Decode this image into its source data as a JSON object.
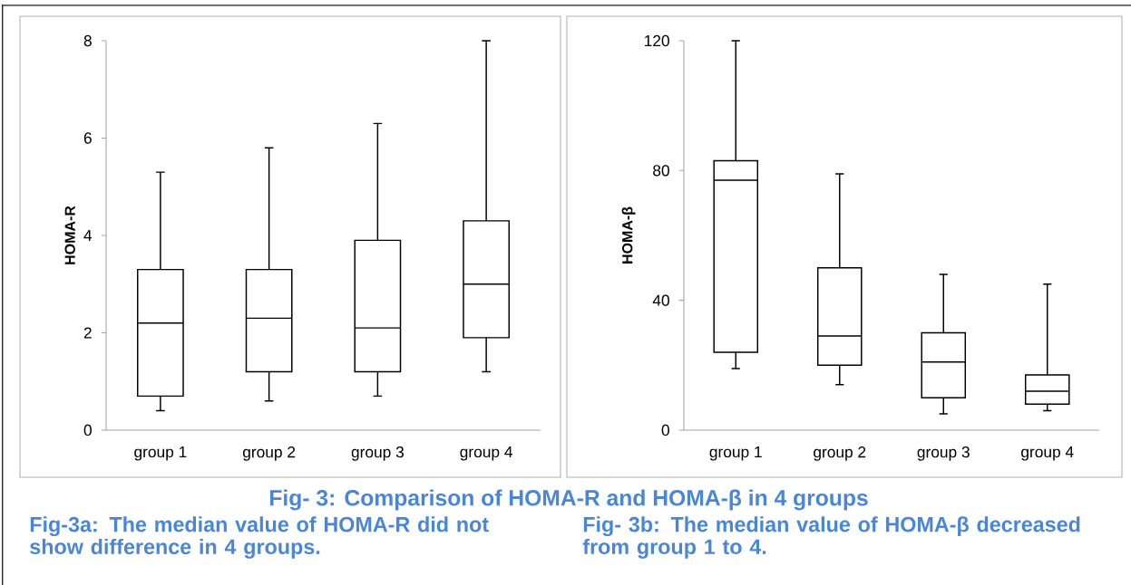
{
  "chart_data": [
    {
      "type": "box",
      "categories": [
        "group 1",
        "group 2",
        "group 3",
        "group 4"
      ],
      "ylabel": "HOMA-R",
      "ylim": [
        0,
        8
      ],
      "yticks": [
        0,
        2,
        4,
        6,
        8
      ],
      "boxes": [
        {
          "low": 0.4,
          "q1": 0.7,
          "median": 2.2,
          "q3": 3.3,
          "high": 5.3
        },
        {
          "low": 0.6,
          "q1": 1.2,
          "median": 2.3,
          "q3": 3.3,
          "high": 5.8
        },
        {
          "low": 0.7,
          "q1": 1.2,
          "median": 2.1,
          "q3": 3.9,
          "high": 6.3
        },
        {
          "low": 1.2,
          "q1": 1.9,
          "median": 3.0,
          "q3": 4.3,
          "high": 8.0
        }
      ],
      "annotations": [
        "Fig- 3: Comparison of HOMA-R and HOMA-β in 4 groups",
        "Fig-3a: The median value of HOMA-R did not show difference in 4 groups."
      ]
    },
    {
      "type": "box",
      "categories": [
        "group 1",
        "group 2",
        "group 3",
        "group 4"
      ],
      "ylabel": "HOMA-β",
      "ylim": [
        0,
        120
      ],
      "yticks": [
        0,
        40,
        80,
        120
      ],
      "boxes": [
        {
          "low": 19,
          "q1": 24,
          "median": 77,
          "q3": 83,
          "high": 120
        },
        {
          "low": 14,
          "q1": 20,
          "median": 29,
          "q3": 50,
          "high": 79
        },
        {
          "low": 5,
          "q1": 10,
          "median": 21,
          "q3": 30,
          "high": 48
        },
        {
          "low": 6,
          "q1": 8,
          "median": 12,
          "q3": 17,
          "high": 45
        }
      ],
      "annotations": [
        "Fig- 3b: The median value of HOMA-β decreased from group 1 to 4."
      ]
    }
  ]
}
